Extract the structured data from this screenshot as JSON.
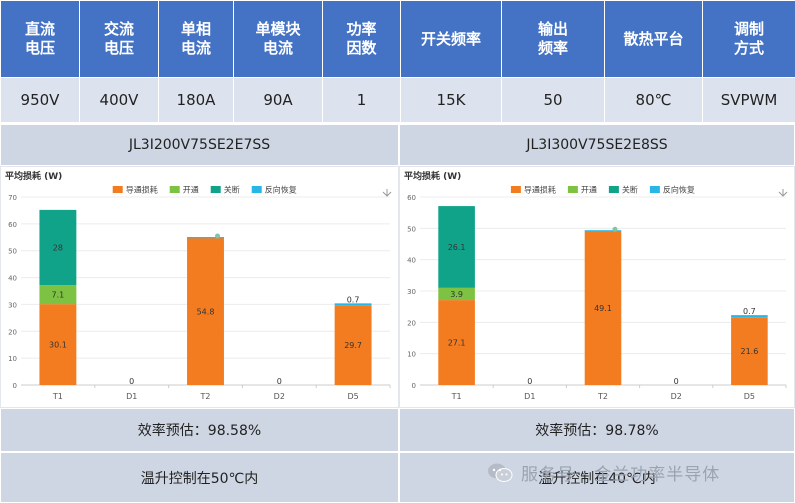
{
  "spec_table": {
    "headers": [
      "直流\n电压",
      "交流\n电压",
      "单相\n电流",
      "单模块\n电流",
      "功率\n因数",
      "开关频率",
      "输出\n频率",
      "散热平台",
      "调制\n方式"
    ],
    "values": [
      "950V",
      "400V",
      "180A",
      "90A",
      "1",
      "15K",
      "50",
      "80℃",
      "SVPWM"
    ]
  },
  "models": [
    "JL3I200V75SE2E7SS",
    "JL3I300V75SE2E8SS"
  ],
  "efficiency": [
    "效率预估：98.58%",
    "效率预估：98.78%"
  ],
  "temperature": [
    "温升控制在50℃内",
    "温升控制在40℃内"
  ],
  "watermark": "服务号 · 金兰功率半导体",
  "chart_data": [
    {
      "type": "bar",
      "title": "平均损耗 (W)",
      "categories": [
        "T1",
        "D1",
        "T2",
        "D2",
        "D5"
      ],
      "series": [
        {
          "name": "导通损耗",
          "color": "#f47c20",
          "values": [
            30.1,
            0,
            54.8,
            0,
            29.7
          ]
        },
        {
          "name": "开通",
          "color": "#7dc242",
          "values": [
            7.1,
            0,
            0,
            0,
            0
          ]
        },
        {
          "name": "关断",
          "color": "#11a38a",
          "values": [
            28,
            0,
            0,
            0,
            0
          ]
        },
        {
          "name": "反向恢复",
          "color": "#27b7e6",
          "values": [
            0,
            0,
            0.3,
            0,
            0.7
          ]
        }
      ],
      "labels": [
        {
          "cat": 0,
          "series": 0,
          "text": "30.1"
        },
        {
          "cat": 0,
          "series": 1,
          "text": "7.1"
        },
        {
          "cat": 0,
          "series": 2,
          "text": "28"
        },
        {
          "cat": 2,
          "series": 0,
          "text": "54.8"
        },
        {
          "cat": 4,
          "series": 0,
          "text": "29.7"
        },
        {
          "cat": 4,
          "series": 3,
          "text": "0.7"
        }
      ],
      "zero_labels": [
        1,
        3
      ],
      "ylim": [
        0,
        70
      ],
      "yticks": [
        0,
        10,
        20,
        30,
        40,
        50,
        60,
        70
      ]
    },
    {
      "type": "bar",
      "title": "平均损耗 (W)",
      "categories": [
        "T1",
        "D1",
        "T2",
        "D2",
        "D5"
      ],
      "series": [
        {
          "name": "导通损耗",
          "color": "#f47c20",
          "values": [
            27.1,
            0,
            49.1,
            0,
            21.6
          ]
        },
        {
          "name": "开通",
          "color": "#7dc242",
          "values": [
            3.9,
            0,
            0,
            0,
            0
          ]
        },
        {
          "name": "关断",
          "color": "#11a38a",
          "values": [
            26.1,
            0,
            0,
            0,
            0
          ]
        },
        {
          "name": "反向恢复",
          "color": "#27b7e6",
          "values": [
            0,
            0,
            0.3,
            0,
            0.7
          ]
        }
      ],
      "labels": [
        {
          "cat": 0,
          "series": 0,
          "text": "27.1"
        },
        {
          "cat": 0,
          "series": 1,
          "text": "3.9"
        },
        {
          "cat": 0,
          "series": 2,
          "text": "26.1"
        },
        {
          "cat": 2,
          "series": 0,
          "text": "49.1"
        },
        {
          "cat": 4,
          "series": 0,
          "text": "21.6"
        },
        {
          "cat": 4,
          "series": 3,
          "text": "0.7"
        }
      ],
      "zero_labels": [
        1,
        3
      ],
      "ylim": [
        0,
        60
      ],
      "yticks": [
        0,
        10,
        20,
        30,
        40,
        50,
        60
      ]
    }
  ]
}
